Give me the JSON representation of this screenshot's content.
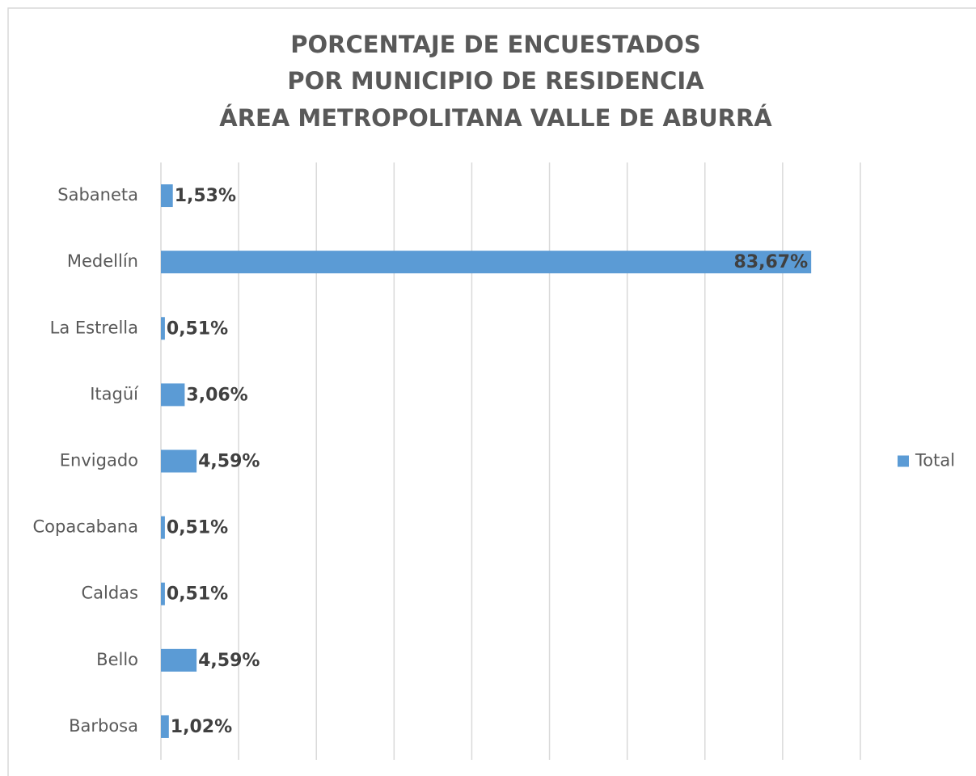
{
  "chart_data": {
    "type": "barh",
    "title": [
      "PORCENTAJE DE ENCUESTADOS",
      "POR MUNICIPIO DE RESIDENCIA",
      "ÁREA METROPOLITANA VALLE DE ABURRÁ"
    ],
    "categories": [
      "Sabaneta",
      "Medellín",
      "La Estrella",
      "Itagüí",
      "Envigado",
      "Copacabana",
      "Caldas",
      "Bello",
      "Barbosa"
    ],
    "series": [
      {
        "name": "Total",
        "color": "#5b9bd5",
        "values": [
          1.53,
          83.67,
          0.51,
          3.06,
          4.59,
          0.51,
          0.51,
          4.59,
          1.02
        ],
        "value_labels": [
          "1,53%",
          "83,67%",
          "0,51%",
          "3,06%",
          "4,59%",
          "0,51%",
          "0,51%",
          "4,59%",
          "1,02%"
        ]
      }
    ],
    "xlim": [
      0,
      90
    ],
    "xticks": [
      0,
      10,
      20,
      30,
      40,
      50,
      60,
      70,
      80,
      90
    ],
    "grid": true,
    "legend": "right"
  }
}
